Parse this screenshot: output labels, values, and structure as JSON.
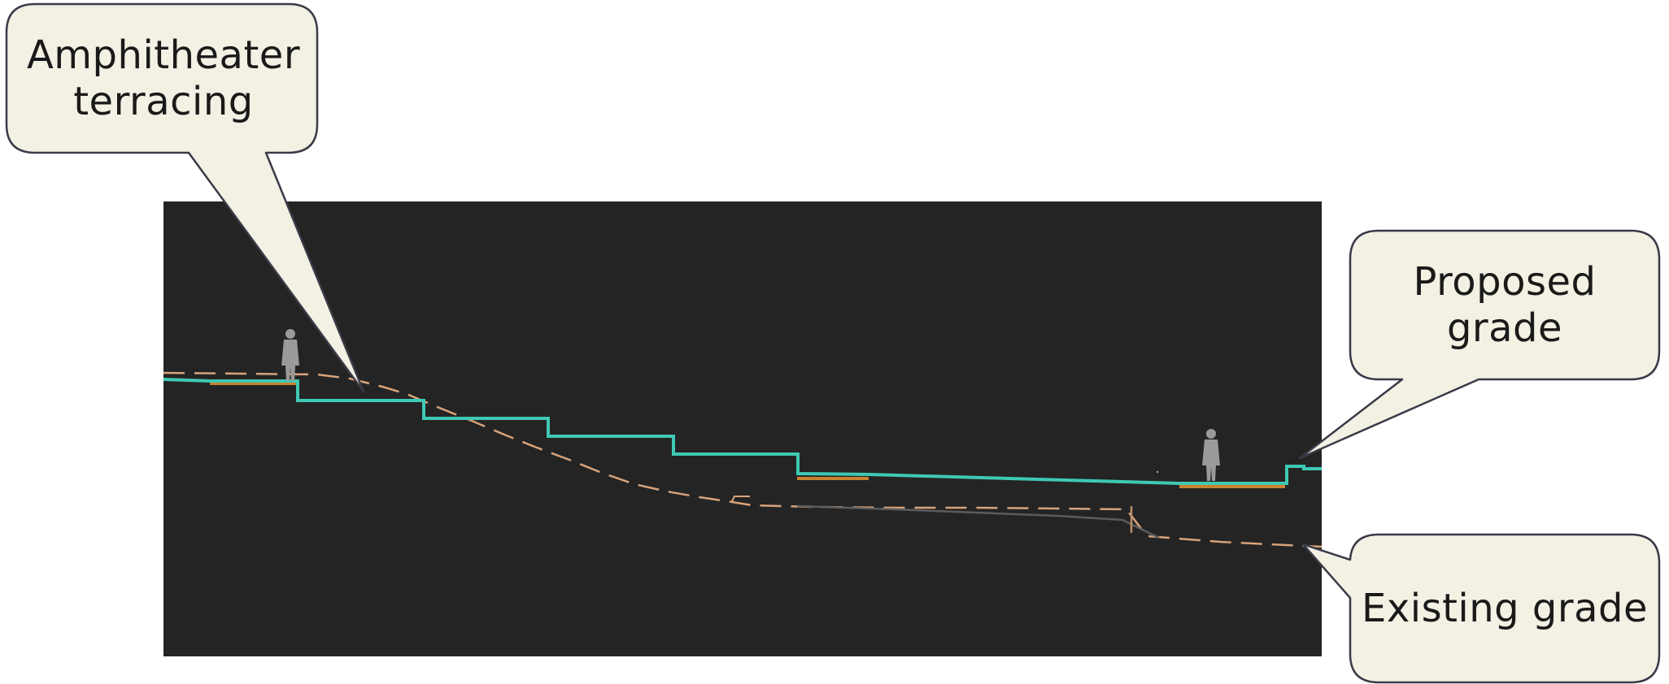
{
  "callouts": {
    "amphitheater": {
      "line1": "Amphitheater",
      "line2": "terracing"
    },
    "proposed": {
      "line1": "Proposed",
      "line2": "grade"
    },
    "existing": {
      "line1": "Existing grade"
    }
  },
  "colors": {
    "panel_background": "#242424",
    "proposed_grade": "#3ec9b4",
    "existing_grade": "#d9a37a",
    "paving_strip": "#c9822f",
    "figure": "#9a9a9a",
    "callout_fill": "#f3f0e4",
    "callout_stroke": "#3a3a48"
  },
  "icons": {
    "figures": [
      "person-silhouette-icon",
      "person-silhouette-icon"
    ]
  }
}
